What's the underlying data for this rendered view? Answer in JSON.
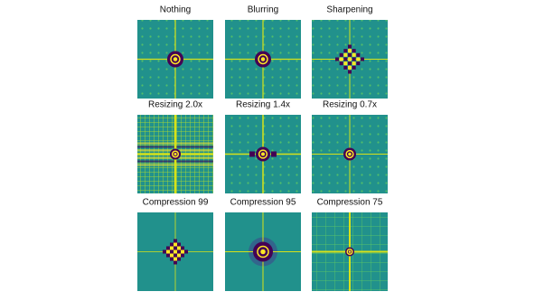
{
  "panels": [
    {
      "title": "Nothing"
    },
    {
      "title": "Blurring"
    },
    {
      "title": "Sharpening"
    },
    {
      "title": "Resizing 2.0x"
    },
    {
      "title": "Resizing 1.4x"
    },
    {
      "title": "Resizing 0.7x"
    },
    {
      "title": "Compression 99"
    },
    {
      "title": "Compression 95"
    },
    {
      "title": "Compression 75"
    }
  ]
}
